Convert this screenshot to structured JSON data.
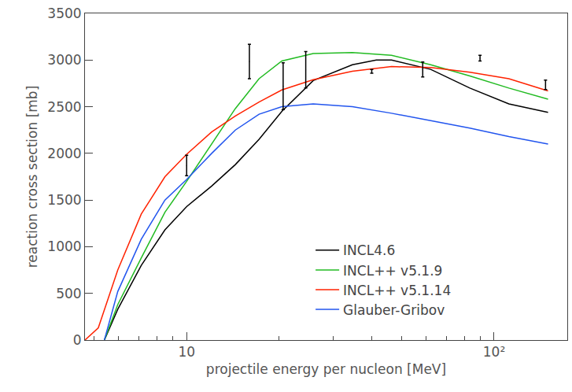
{
  "chart_data": {
    "type": "line",
    "x_label": "projectile energy per nucleon [MeV]",
    "y_label": "reaction cross section [mb]",
    "log": "x",
    "grid": false,
    "legend": "lower right",
    "xlim": [
      4.67,
      173
    ],
    "xticks": [
      10,
      {
        "value": 100,
        "label": "10²"
      }
    ],
    "ylim": [
      0,
      3500
    ],
    "yticks": [
      0,
      500,
      1000,
      1500,
      2000,
      2500,
      3000,
      3500
    ],
    "series": [
      {
        "name": "INCL4.6",
        "color": "#000000",
        "x": [
          5.4,
          5.97,
          7.12,
          8.5,
          10,
          12.06,
          14.4,
          17.2,
          20.4,
          25.8,
          34.6,
          41.4,
          46.4,
          62.2,
          83.4,
          111.7,
          149.8
        ],
        "values": [
          0,
          330,
          800,
          1180,
          1430,
          1650,
          1880,
          2150,
          2450,
          2780,
          2950,
          3000,
          3000,
          2900,
          2700,
          2530,
          2440
        ]
      },
      {
        "name": "INCL++ v5.1.9",
        "color": "#22bb22",
        "x": [
          5.4,
          5.97,
          7.12,
          8.5,
          10,
          12.06,
          14.4,
          17.2,
          20.4,
          25.8,
          34.6,
          46.4,
          62.2,
          83.4,
          111.7,
          149.8
        ],
        "values": [
          0,
          380,
          880,
          1370,
          1700,
          2100,
          2480,
          2800,
          2990,
          3070,
          3080,
          3050,
          2950,
          2830,
          2700,
          2580
        ]
      },
      {
        "name": "INCL++ v5.1.14",
        "color": "#ff2200",
        "x": [
          4.67,
          5.16,
          5.97,
          7.12,
          8.5,
          10,
          12.06,
          14.4,
          17.2,
          20.4,
          25.8,
          34.6,
          46.4,
          62.2,
          83.4,
          111.7,
          149.8
        ],
        "values": [
          0,
          130,
          750,
          1350,
          1750,
          1990,
          2230,
          2400,
          2550,
          2680,
          2790,
          2880,
          2930,
          2920,
          2870,
          2800,
          2670
        ]
      },
      {
        "name": "Glauber-Gribov",
        "color": "#2255ee",
        "x": [
          5.4,
          5.97,
          7.12,
          8.5,
          10,
          12.06,
          14.4,
          17.2,
          20.4,
          25.8,
          34.6,
          46.4,
          62.2,
          83.4,
          111.7,
          149.8
        ],
        "values": [
          0,
          520,
          1080,
          1500,
          1720,
          2000,
          2250,
          2420,
          2500,
          2530,
          2500,
          2430,
          2350,
          2270,
          2180,
          2100
        ]
      }
    ],
    "measurements": {
      "color": "#000000",
      "x": [
        10,
        16,
        20.6,
        24.4,
        40,
        58.6,
        90,
        147
      ],
      "values": [
        1870,
        2985,
        2720,
        2895,
        2880,
        2900,
        3020,
        2735
      ],
      "errors": [
        110,
        185,
        250,
        195,
        20,
        80,
        30,
        50
      ]
    }
  }
}
